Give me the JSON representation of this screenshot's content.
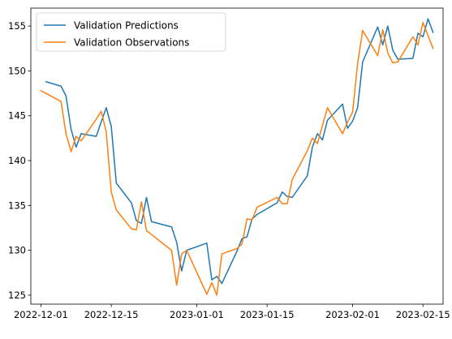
{
  "chart_data": {
    "type": "line",
    "title": "",
    "xlabel": "",
    "ylabel": "",
    "x_type": "date",
    "xlim": [
      "2022-11-29",
      "2023-02-19"
    ],
    "ylim": [
      124,
      157
    ],
    "x_ticks": [
      "2022-12-01",
      "2022-12-15",
      "2023-01-01",
      "2023-01-15",
      "2023-02-01",
      "2023-02-15"
    ],
    "y_ticks": [
      125,
      130,
      135,
      140,
      145,
      150,
      155
    ],
    "grid": false,
    "legend": {
      "position": "top-left"
    },
    "series": [
      {
        "name": "Validation Predictions",
        "color": "#1f77b4",
        "points": [
          [
            "2022-12-02",
            148.8
          ],
          [
            "2022-12-05",
            148.3
          ],
          [
            "2022-12-06",
            147.2
          ],
          [
            "2022-12-07",
            143.5
          ],
          [
            "2022-12-08",
            141.5
          ],
          [
            "2022-12-09",
            143.0
          ],
          [
            "2022-12-12",
            142.7
          ],
          [
            "2022-12-14",
            145.9
          ],
          [
            "2022-12-15",
            143.8
          ],
          [
            "2022-12-16",
            137.5
          ],
          [
            "2022-12-19",
            135.3
          ],
          [
            "2022-12-20",
            133.3
          ],
          [
            "2022-12-21",
            133.0
          ],
          [
            "2022-12-22",
            135.9
          ],
          [
            "2022-12-23",
            133.2
          ],
          [
            "2022-12-27",
            132.6
          ],
          [
            "2022-12-28",
            130.9
          ],
          [
            "2022-12-29",
            127.7
          ],
          [
            "2022-12-30",
            130.0
          ],
          [
            "2023-01-03",
            130.8
          ],
          [
            "2023-01-04",
            126.7
          ],
          [
            "2023-01-05",
            127.1
          ],
          [
            "2023-01-06",
            126.3
          ],
          [
            "2023-01-09",
            129.9
          ],
          [
            "2023-01-10",
            131.3
          ],
          [
            "2023-01-11",
            131.5
          ],
          [
            "2023-01-12",
            133.5
          ],
          [
            "2023-01-13",
            134.0
          ],
          [
            "2023-01-17",
            135.3
          ],
          [
            "2023-01-18",
            136.5
          ],
          [
            "2023-01-19",
            136.0
          ],
          [
            "2023-01-20",
            135.9
          ],
          [
            "2023-01-23",
            138.3
          ],
          [
            "2023-01-24",
            141.5
          ],
          [
            "2023-01-25",
            143.0
          ],
          [
            "2023-01-26",
            142.3
          ],
          [
            "2023-01-27",
            144.5
          ],
          [
            "2023-01-30",
            146.3
          ],
          [
            "2023-01-31",
            143.6
          ],
          [
            "2023-02-01",
            144.4
          ],
          [
            "2023-02-02",
            145.9
          ],
          [
            "2023-02-03",
            151.0
          ],
          [
            "2023-02-06",
            154.9
          ],
          [
            "2023-02-07",
            152.9
          ],
          [
            "2023-02-08",
            155.0
          ],
          [
            "2023-02-09",
            152.3
          ],
          [
            "2023-02-10",
            151.3
          ],
          [
            "2023-02-13",
            151.4
          ],
          [
            "2023-02-14",
            154.2
          ],
          [
            "2023-02-15",
            153.8
          ],
          [
            "2023-02-16",
            155.8
          ],
          [
            "2023-02-17",
            154.3
          ]
        ]
      },
      {
        "name": "Validation Observations",
        "color": "#ff7f0e",
        "points": [
          [
            "2022-12-01",
            147.8
          ],
          [
            "2022-12-05",
            146.6
          ],
          [
            "2022-12-06",
            143.0
          ],
          [
            "2022-12-07",
            141.0
          ],
          [
            "2022-12-08",
            142.7
          ],
          [
            "2022-12-09",
            142.2
          ],
          [
            "2022-12-12",
            144.6
          ],
          [
            "2022-12-13",
            145.5
          ],
          [
            "2022-12-14",
            143.2
          ],
          [
            "2022-12-15",
            136.5
          ],
          [
            "2022-12-16",
            134.5
          ],
          [
            "2022-12-19",
            132.4
          ],
          [
            "2022-12-20",
            132.3
          ],
          [
            "2022-12-21",
            135.4
          ],
          [
            "2022-12-22",
            132.2
          ],
          [
            "2022-12-27",
            130.0
          ],
          [
            "2022-12-28",
            126.1
          ],
          [
            "2022-12-29",
            129.6
          ],
          [
            "2022-12-30",
            130.0
          ],
          [
            "2023-01-03",
            125.1
          ],
          [
            "2023-01-04",
            126.4
          ],
          [
            "2023-01-05",
            125.0
          ],
          [
            "2023-01-06",
            129.6
          ],
          [
            "2023-01-09",
            130.2
          ],
          [
            "2023-01-10",
            130.7
          ],
          [
            "2023-01-11",
            133.5
          ],
          [
            "2023-01-12",
            133.4
          ],
          [
            "2023-01-13",
            134.8
          ],
          [
            "2023-01-17",
            135.9
          ],
          [
            "2023-01-18",
            135.2
          ],
          [
            "2023-01-19",
            135.2
          ],
          [
            "2023-01-20",
            137.9
          ],
          [
            "2023-01-23",
            141.1
          ],
          [
            "2023-01-24",
            142.5
          ],
          [
            "2023-01-25",
            141.9
          ],
          [
            "2023-01-26",
            143.9
          ],
          [
            "2023-01-27",
            145.9
          ],
          [
            "2023-01-30",
            143.0
          ],
          [
            "2023-01-31",
            144.3
          ],
          [
            "2023-02-01",
            145.4
          ],
          [
            "2023-02-02",
            150.8
          ],
          [
            "2023-02-03",
            154.5
          ],
          [
            "2023-02-06",
            151.7
          ],
          [
            "2023-02-07",
            154.6
          ],
          [
            "2023-02-08",
            152.0
          ],
          [
            "2023-02-09",
            150.9
          ],
          [
            "2023-02-10",
            151.0
          ],
          [
            "2023-02-13",
            153.8
          ],
          [
            "2023-02-14",
            152.9
          ],
          [
            "2023-02-15",
            155.4
          ],
          [
            "2023-02-17",
            152.5
          ]
        ]
      }
    ]
  }
}
